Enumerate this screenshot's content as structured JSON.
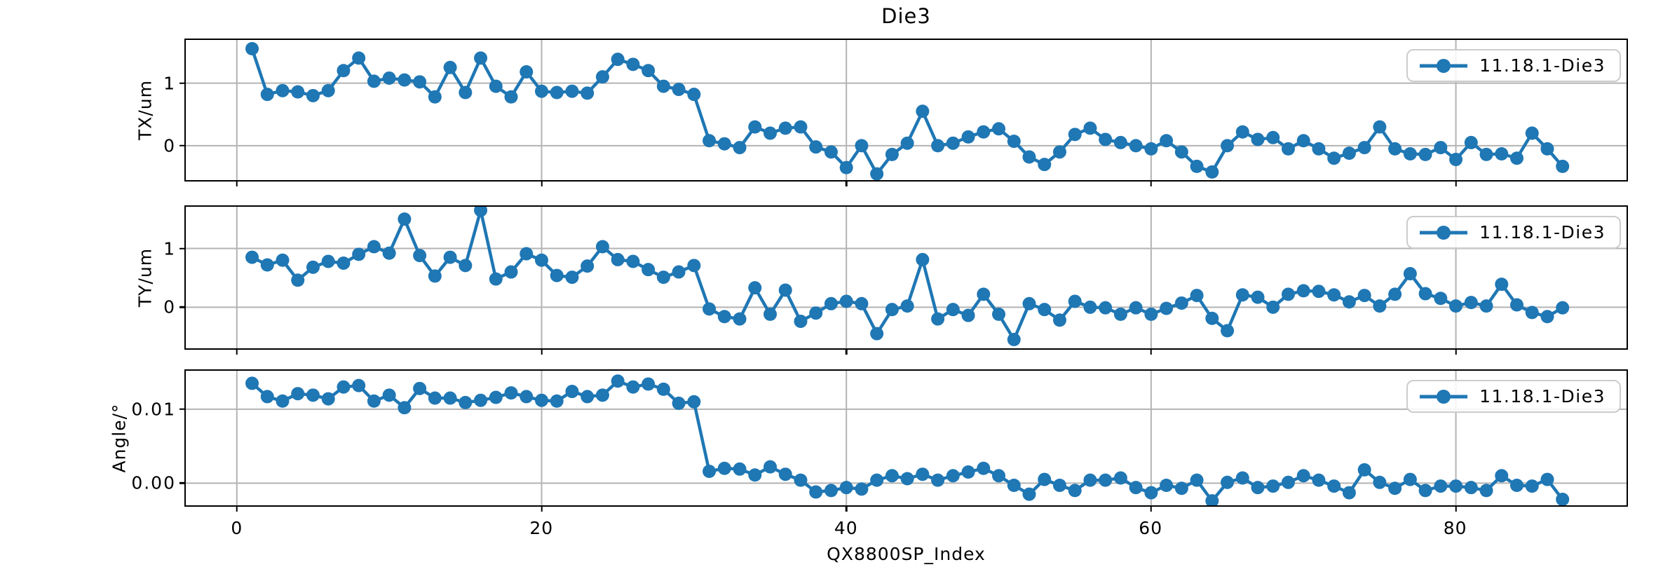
{
  "title": "Die3",
  "xlabel": "QX8800SP_Index",
  "colors": {
    "line": "#1f77b4",
    "grid": "#b3b3b3",
    "spine": "#000000",
    "background": "#ffffff",
    "legend_border": "#cccccc"
  },
  "xlim": [
    -3.35,
    91.2
  ],
  "x_ticks": [
    0,
    20,
    40,
    60,
    80
  ],
  "x_tick_labels": [
    "0",
    "20",
    "40",
    "60",
    "80"
  ],
  "chart_data": [
    {
      "type": "line",
      "name": "TX",
      "ylabel": "TX/um",
      "series_name": "11.18.1-Die3",
      "legend_position": "upper right",
      "grid": true,
      "y_ticks": [
        0,
        1
      ],
      "y_tick_labels": [
        "0",
        "1"
      ],
      "ylim": [
        -0.55,
        1.69
      ],
      "x_start": 1,
      "x_step": 1,
      "n_points": 87,
      "values": [
        1.55,
        0.82,
        0.88,
        0.86,
        0.8,
        0.88,
        1.2,
        1.4,
        1.03,
        1.08,
        1.05,
        1.02,
        0.78,
        1.25,
        0.85,
        1.4,
        0.95,
        0.78,
        1.18,
        0.87,
        0.85,
        0.87,
        0.84,
        1.1,
        1.38,
        1.3,
        1.2,
        0.95,
        0.9,
        0.82,
        0.08,
        0.03,
        -0.03,
        0.3,
        0.2,
        0.28,
        0.3,
        -0.02,
        -0.1,
        -0.35,
        0.0,
        -0.45,
        -0.14,
        0.04,
        0.55,
        0.0,
        0.04,
        0.14,
        0.22,
        0.27,
        0.07,
        -0.18,
        -0.3,
        -0.1,
        0.18,
        0.28,
        0.1,
        0.05,
        0.0,
        -0.05,
        0.08,
        -0.1,
        -0.33,
        -0.42,
        0.0,
        0.22,
        0.1,
        0.13,
        -0.05,
        0.08,
        -0.05,
        -0.2,
        -0.12,
        -0.03,
        0.3,
        -0.05,
        -0.13,
        -0.14,
        -0.03,
        -0.22,
        0.05,
        -0.14,
        -0.13,
        -0.2,
        0.2,
        -0.05,
        -0.33
      ]
    },
    {
      "type": "line",
      "name": "TY",
      "ylabel": "TY/um",
      "series_name": "11.18.1-Die3",
      "legend_position": "upper right",
      "grid": true,
      "y_ticks": [
        0,
        1
      ],
      "y_tick_labels": [
        "0",
        "1"
      ],
      "ylim": [
        -0.7,
        1.71
      ],
      "x_start": 1,
      "x_step": 1,
      "n_points": 87,
      "values": [
        0.85,
        0.72,
        0.8,
        0.46,
        0.68,
        0.78,
        0.75,
        0.9,
        1.03,
        0.92,
        1.5,
        0.88,
        0.53,
        0.85,
        0.71,
        1.65,
        0.48,
        0.6,
        0.91,
        0.8,
        0.54,
        0.51,
        0.7,
        1.03,
        0.81,
        0.78,
        0.64,
        0.51,
        0.6,
        0.71,
        -0.03,
        -0.16,
        -0.2,
        0.33,
        -0.12,
        0.29,
        -0.24,
        -0.1,
        0.06,
        0.1,
        0.06,
        -0.45,
        -0.04,
        0.02,
        0.81,
        -0.2,
        -0.04,
        -0.14,
        0.22,
        -0.12,
        -0.55,
        0.06,
        -0.04,
        -0.22,
        0.1,
        0.0,
        -0.01,
        -0.12,
        -0.01,
        -0.12,
        -0.02,
        0.07,
        0.2,
        -0.19,
        -0.4,
        0.21,
        0.17,
        0.0,
        0.22,
        0.28,
        0.27,
        0.21,
        0.09,
        0.2,
        0.02,
        0.22,
        0.57,
        0.23,
        0.15,
        0.02,
        0.08,
        0.02,
        0.39,
        0.04,
        -0.09,
        -0.16,
        -0.01
      ]
    },
    {
      "type": "line",
      "name": "Angle",
      "ylabel": "Angle/°",
      "series_name": "11.18.1-Die3",
      "legend_position": "upper right",
      "grid": true,
      "y_ticks": [
        0.0,
        0.01
      ],
      "y_tick_labels": [
        "0.00",
        "0.01"
      ],
      "ylim": [
        -0.003,
        0.0152
      ],
      "x_start": 1,
      "x_step": 1,
      "n_points": 87,
      "values": [
        0.0135,
        0.0117,
        0.0111,
        0.0121,
        0.0119,
        0.0114,
        0.013,
        0.0132,
        0.0111,
        0.0119,
        0.0102,
        0.0128,
        0.0115,
        0.0115,
        0.0109,
        0.0112,
        0.0116,
        0.0122,
        0.0117,
        0.0112,
        0.0111,
        0.0124,
        0.0117,
        0.0119,
        0.0138,
        0.013,
        0.0134,
        0.0127,
        0.0108,
        0.011,
        0.0016,
        0.002,
        0.0019,
        0.0011,
        0.0022,
        0.0012,
        0.0004,
        -0.0012,
        -0.001,
        -0.0006,
        -0.0008,
        0.0004,
        0.001,
        0.0006,
        0.0012,
        0.0004,
        0.001,
        0.0015,
        0.002,
        0.001,
        -0.0003,
        -0.0015,
        0.0005,
        -0.0003,
        -0.001,
        0.0004,
        0.0004,
        0.0007,
        -0.0006,
        -0.0013,
        -0.0003,
        -0.0007,
        0.0004,
        -0.0024,
        0.0001,
        0.0007,
        -0.0006,
        -0.0004,
        0.0001,
        0.001,
        0.0004,
        -0.0004,
        -0.0013,
        0.0018,
        0.0001,
        -0.0007,
        0.0005,
        -0.001,
        -0.0004,
        -0.0004,
        -0.0006,
        -0.001,
        0.001,
        -0.0003,
        -0.0004,
        0.0005,
        -0.0022
      ]
    }
  ]
}
